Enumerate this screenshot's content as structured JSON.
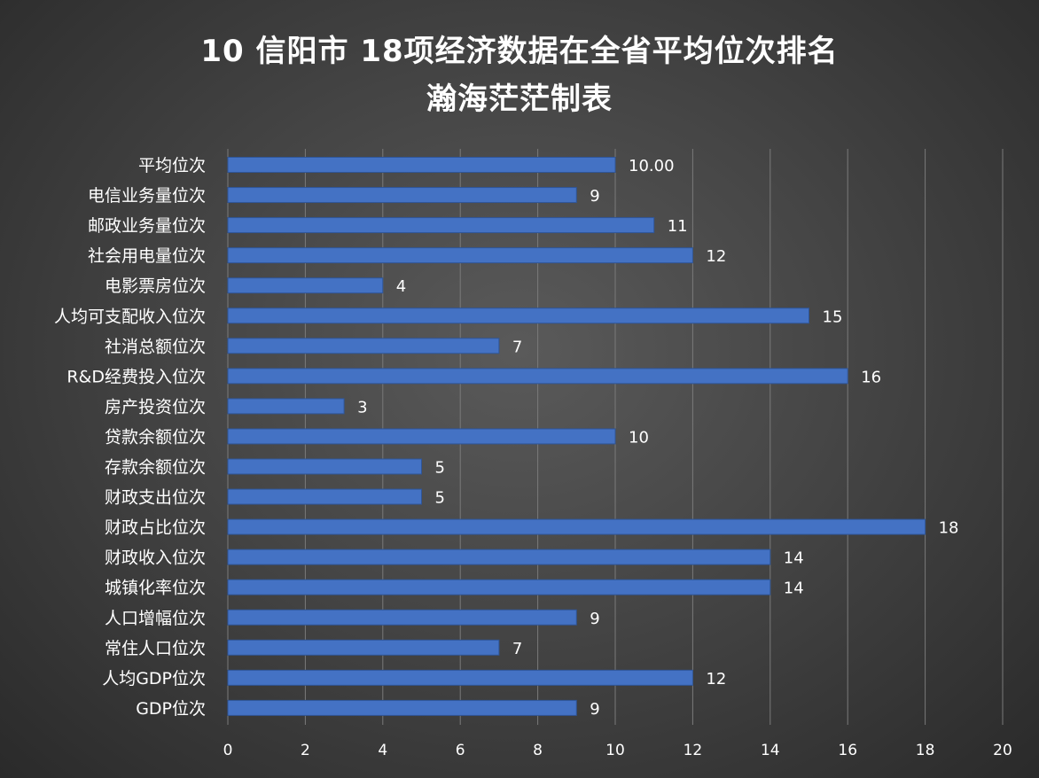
{
  "title": "10 信阳市 18项经济数据在全省平均位次排名",
  "subtitle": "瀚海茫茫制表",
  "chart_data": {
    "type": "bar",
    "orientation": "horizontal",
    "categories": [
      "平均位次",
      "电信业务量位次",
      "邮政业务量位次",
      "社会用电量位次",
      "电影票房位次",
      "人均可支配收入位次",
      "社消总额位次",
      "R&D经费投入位次",
      "房产投资位次",
      "贷款余额位次",
      "存款余额位次",
      "财政支出位次",
      "财政占比位次",
      "财政收入位次",
      "城镇化率位次",
      "人口增幅位次",
      "常住人口位次",
      "人均GDP位次",
      "GDP位次"
    ],
    "values": [
      10,
      9,
      11,
      12,
      4,
      15,
      7,
      16,
      3,
      10,
      5,
      5,
      18,
      14,
      14,
      9,
      7,
      12,
      9
    ],
    "value_labels": [
      "10.00",
      "9",
      "11",
      "12",
      "4",
      "15",
      "7",
      "16",
      "3",
      "10",
      "5",
      "5",
      "18",
      "14",
      "14",
      "9",
      "7",
      "12",
      "9"
    ],
    "xlim": [
      0,
      20
    ],
    "xticks": [
      "0",
      "2",
      "4",
      "6",
      "8",
      "10",
      "12",
      "14",
      "16",
      "18",
      "20"
    ],
    "grid": true,
    "bar_color": "#4472C4",
    "background_color": "#3f3f3f",
    "text_color": "#ffffff"
  }
}
